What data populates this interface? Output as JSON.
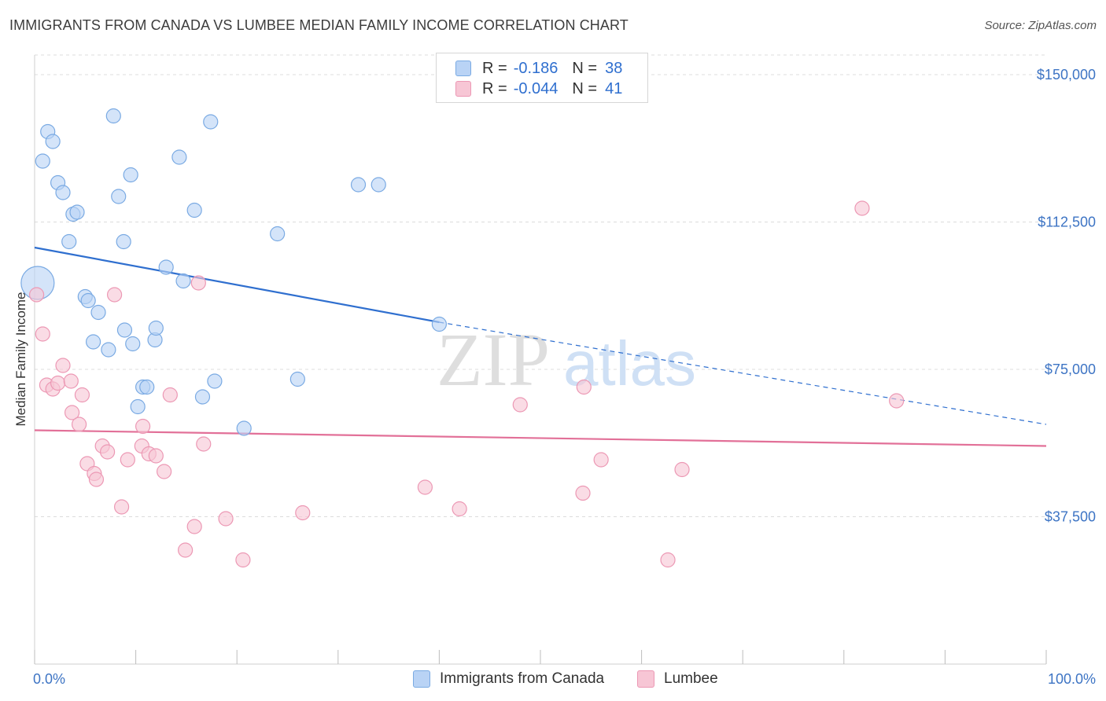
{
  "header": {
    "title": "IMMIGRANTS FROM CANADA VS LUMBEE MEDIAN FAMILY INCOME CORRELATION CHART",
    "source": "Source: ZipAtlas.com"
  },
  "watermark": {
    "zip": "ZIP",
    "atlas": "atlas"
  },
  "legend": {
    "rows": [
      {
        "r_label": "R =",
        "r_value": "-0.186",
        "n_label": "N =",
        "n_value": "38",
        "color": "#b9d3f5"
      },
      {
        "r_label": "R =",
        "r_value": "-0.044",
        "n_label": "N =",
        "n_value": "41",
        "color": "#f7c6d5"
      }
    ]
  },
  "bottom_legend": {
    "items": [
      {
        "label": "Immigrants from Canada",
        "color": "#b9d3f5"
      },
      {
        "label": "Lumbee",
        "color": "#f7c6d5"
      }
    ]
  },
  "colors": {
    "canada_fill": "#b9d3f5",
    "canada_stroke": "#7aaae3",
    "canada_line": "#2f6fcf",
    "lumbee_fill": "#f7c6d5",
    "lumbee_stroke": "#ec98b4",
    "lumbee_line": "#e27098",
    "tick_text": "#3d74c4"
  },
  "chart_data": {
    "type": "scatter",
    "title": "IMMIGRANTS FROM CANADA VS LUMBEE MEDIAN FAMILY INCOME CORRELATION CHART",
    "xlabel": "",
    "ylabel": "Median Family Income",
    "xlim": [
      0,
      100
    ],
    "ylim": [
      0,
      155000
    ],
    "x_tick_labels": [
      "0.0%",
      "100.0%"
    ],
    "y_ticks": [
      {
        "value": 37500,
        "label": "$37,500"
      },
      {
        "value": 75000,
        "label": "$75,000"
      },
      {
        "value": 112500,
        "label": "$112,500"
      },
      {
        "value": 150000,
        "label": "$150,000"
      }
    ],
    "grid": true,
    "legend_position": "top-center",
    "series": [
      {
        "name": "Immigrants from Canada",
        "r": -0.186,
        "n": 38,
        "trend": {
          "x0": 0,
          "y0": 106000,
          "x1": 40,
          "y1": 87000,
          "x_dash_end": 100,
          "y_dash_end": 61000
        },
        "points": [
          {
            "x": 0.3,
            "y": 97000,
            "big": true
          },
          {
            "x": 0.8,
            "y": 128000
          },
          {
            "x": 1.3,
            "y": 135500
          },
          {
            "x": 1.8,
            "y": 133000
          },
          {
            "x": 2.3,
            "y": 122500
          },
          {
            "x": 2.8,
            "y": 120000
          },
          {
            "x": 3.4,
            "y": 107500
          },
          {
            "x": 3.8,
            "y": 114500
          },
          {
            "x": 4.2,
            "y": 115000
          },
          {
            "x": 5.0,
            "y": 93500
          },
          {
            "x": 5.3,
            "y": 92500
          },
          {
            "x": 5.8,
            "y": 82000
          },
          {
            "x": 6.3,
            "y": 89500
          },
          {
            "x": 7.3,
            "y": 80000
          },
          {
            "x": 7.8,
            "y": 139500
          },
          {
            "x": 8.3,
            "y": 119000
          },
          {
            "x": 8.8,
            "y": 107500
          },
          {
            "x": 8.9,
            "y": 85000
          },
          {
            "x": 9.5,
            "y": 124500
          },
          {
            "x": 9.7,
            "y": 81500
          },
          {
            "x": 10.2,
            "y": 65500
          },
          {
            "x": 10.7,
            "y": 70500
          },
          {
            "x": 11.1,
            "y": 70500
          },
          {
            "x": 11.9,
            "y": 82500
          },
          {
            "x": 12.0,
            "y": 85500
          },
          {
            "x": 13.0,
            "y": 101000
          },
          {
            "x": 14.3,
            "y": 129000
          },
          {
            "x": 14.7,
            "y": 97500
          },
          {
            "x": 15.8,
            "y": 115500
          },
          {
            "x": 16.6,
            "y": 68000
          },
          {
            "x": 17.4,
            "y": 138000
          },
          {
            "x": 17.8,
            "y": 72000
          },
          {
            "x": 20.7,
            "y": 60000
          },
          {
            "x": 24.0,
            "y": 109500
          },
          {
            "x": 26.0,
            "y": 72500
          },
          {
            "x": 32.0,
            "y": 122000
          },
          {
            "x": 34.0,
            "y": 122000
          },
          {
            "x": 40.0,
            "y": 86500
          }
        ]
      },
      {
        "name": "Lumbee",
        "r": -0.044,
        "n": 41,
        "trend": {
          "x0": 0,
          "y0": 59500,
          "x1": 100,
          "y1": 55500
        },
        "points": [
          {
            "x": 0.2,
            "y": 94000
          },
          {
            "x": 0.8,
            "y": 84000
          },
          {
            "x": 1.2,
            "y": 71000
          },
          {
            "x": 1.8,
            "y": 70000
          },
          {
            "x": 2.3,
            "y": 71500
          },
          {
            "x": 2.8,
            "y": 76000
          },
          {
            "x": 3.6,
            "y": 72000
          },
          {
            "x": 3.7,
            "y": 64000
          },
          {
            "x": 4.4,
            "y": 61000
          },
          {
            "x": 4.7,
            "y": 68500
          },
          {
            "x": 5.2,
            "y": 51000
          },
          {
            "x": 5.9,
            "y": 48500
          },
          {
            "x": 6.1,
            "y": 47000
          },
          {
            "x": 6.7,
            "y": 55500
          },
          {
            "x": 7.2,
            "y": 54000
          },
          {
            "x": 7.9,
            "y": 94000
          },
          {
            "x": 8.6,
            "y": 40000
          },
          {
            "x": 9.2,
            "y": 52000
          },
          {
            "x": 10.6,
            "y": 55500
          },
          {
            "x": 10.7,
            "y": 60500
          },
          {
            "x": 11.3,
            "y": 53500
          },
          {
            "x": 12.0,
            "y": 53000
          },
          {
            "x": 12.8,
            "y": 49000
          },
          {
            "x": 13.4,
            "y": 68500
          },
          {
            "x": 14.9,
            "y": 29000
          },
          {
            "x": 15.8,
            "y": 35000
          },
          {
            "x": 16.2,
            "y": 97000
          },
          {
            "x": 16.7,
            "y": 56000
          },
          {
            "x": 18.9,
            "y": 37000
          },
          {
            "x": 20.6,
            "y": 26500
          },
          {
            "x": 26.5,
            "y": 38500
          },
          {
            "x": 38.6,
            "y": 45000
          },
          {
            "x": 42.0,
            "y": 39500
          },
          {
            "x": 48.0,
            "y": 66000
          },
          {
            "x": 54.2,
            "y": 43500
          },
          {
            "x": 54.3,
            "y": 70500
          },
          {
            "x": 56.0,
            "y": 52000
          },
          {
            "x": 62.6,
            "y": 26500
          },
          {
            "x": 64.0,
            "y": 49500
          },
          {
            "x": 81.8,
            "y": 116000
          },
          {
            "x": 85.2,
            "y": 67000
          }
        ]
      }
    ]
  }
}
